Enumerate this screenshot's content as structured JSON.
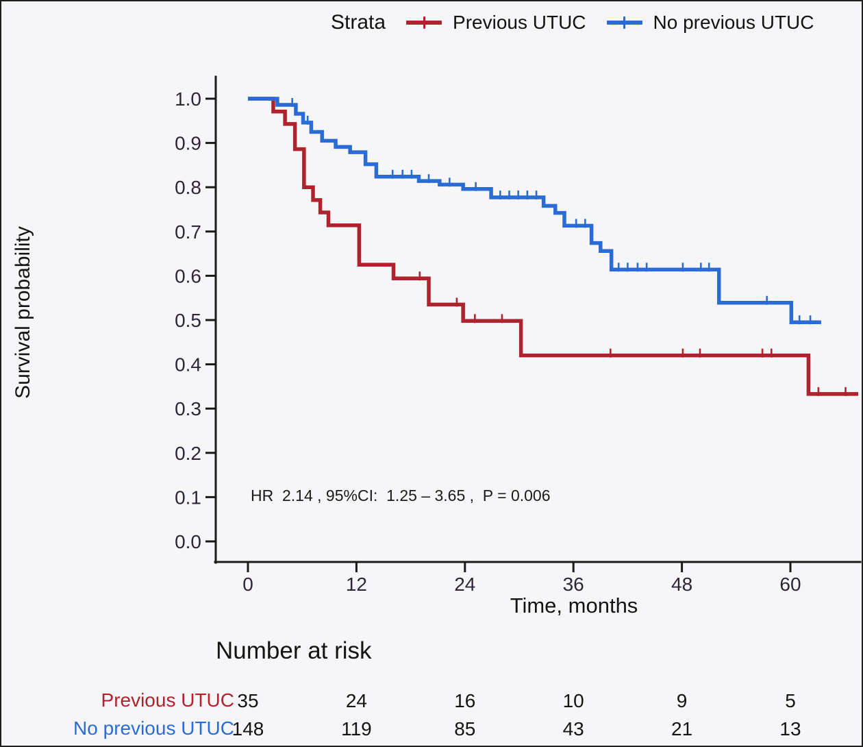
{
  "legend_title": "Strata",
  "chart_data": {
    "type": "line",
    "subtype": "kaplan-meier-step-curves",
    "title": "",
    "xlabel": "Time, months",
    "ylabel": "Survival probability",
    "annotation": "HR  2.14 , 95%CI:  1.25 – 3.65 ,  P = 0.006",
    "xlim": [
      0,
      68
    ],
    "ylim": [
      0.0,
      1.0
    ],
    "grid": false,
    "legend_position": "top",
    "x_tick_values": [
      0,
      12,
      24,
      36,
      48,
      60
    ],
    "x_tick_labels": [
      "0",
      "12",
      "24",
      "36",
      "48",
      "60"
    ],
    "y_tick_values": [
      0.0,
      0.1,
      0.2,
      0.3,
      0.4,
      0.5,
      0.6,
      0.7,
      0.8,
      0.9,
      1.0
    ],
    "y_tick_labels": [
      "0.0",
      "0.1",
      "0.2",
      "0.3",
      "0.4",
      "0.5",
      "0.6",
      "0.7",
      "0.8",
      "0.9",
      "1.0"
    ],
    "series": [
      {
        "name": "Previous UTUC",
        "color": "#AE232E",
        "steps": [
          [
            0,
            1.0
          ],
          [
            2.8,
            0.971
          ],
          [
            4.1,
            0.943
          ],
          [
            5.2,
            0.886
          ],
          [
            6.2,
            0.8
          ],
          [
            7.2,
            0.771
          ],
          [
            8.0,
            0.743
          ],
          [
            8.9,
            0.714
          ],
          [
            12.3,
            0.625
          ],
          [
            16.1,
            0.594
          ],
          [
            20.0,
            0.535
          ],
          [
            23.8,
            0.498
          ],
          [
            30.2,
            0.42
          ],
          [
            62.0,
            0.333
          ]
        ],
        "end_time": 67.5,
        "censors": [
          [
            19.0,
            0.594
          ],
          [
            23.1,
            0.535
          ],
          [
            25.1,
            0.498
          ],
          [
            28.1,
            0.498
          ],
          [
            40.1,
            0.42
          ],
          [
            48.1,
            0.42
          ],
          [
            50.0,
            0.42
          ],
          [
            56.9,
            0.42
          ],
          [
            57.9,
            0.42
          ],
          [
            63.1,
            0.333
          ],
          [
            66.1,
            0.333
          ]
        ]
      },
      {
        "name": "No previous UTUC",
        "color": "#2A6CD4",
        "steps": [
          [
            0,
            1.0
          ],
          [
            3.25,
            0.986
          ],
          [
            5.3,
            0.966
          ],
          [
            6.1,
            0.946
          ],
          [
            7.0,
            0.925
          ],
          [
            8.2,
            0.905
          ],
          [
            9.7,
            0.891
          ],
          [
            11.3,
            0.879
          ],
          [
            13.0,
            0.852
          ],
          [
            14.2,
            0.824
          ],
          [
            18.9,
            0.814
          ],
          [
            21.2,
            0.806
          ],
          [
            23.8,
            0.796
          ],
          [
            26.9,
            0.777
          ],
          [
            32.7,
            0.758
          ],
          [
            34.0,
            0.742
          ],
          [
            35.0,
            0.713
          ],
          [
            38.0,
            0.674
          ],
          [
            39.0,
            0.656
          ],
          [
            40.2,
            0.614
          ],
          [
            52.1,
            0.539
          ],
          [
            60.1,
            0.495
          ]
        ],
        "end_time": 63.4,
        "censors": [
          [
            4.9,
            0.986
          ],
          [
            6.6,
            0.946
          ],
          [
            16.0,
            0.824
          ],
          [
            17.1,
            0.824
          ],
          [
            18.1,
            0.824
          ],
          [
            20.0,
            0.814
          ],
          [
            22.3,
            0.806
          ],
          [
            25.2,
            0.796
          ],
          [
            27.9,
            0.777
          ],
          [
            28.9,
            0.777
          ],
          [
            29.9,
            0.777
          ],
          [
            30.9,
            0.777
          ],
          [
            31.9,
            0.777
          ],
          [
            36.3,
            0.713
          ],
          [
            37.3,
            0.713
          ],
          [
            41.0,
            0.614
          ],
          [
            42.0,
            0.614
          ],
          [
            43.1,
            0.614
          ],
          [
            44.1,
            0.614
          ],
          [
            48.1,
            0.614
          ],
          [
            50.1,
            0.614
          ],
          [
            51.0,
            0.614
          ],
          [
            57.4,
            0.539
          ],
          [
            61.0,
            0.495
          ],
          [
            62.2,
            0.495
          ]
        ]
      }
    ],
    "risk_table": {
      "title": "Number at risk",
      "times": [
        0,
        12,
        24,
        36,
        48,
        60
      ],
      "rows": [
        {
          "label": "Previous UTUC",
          "color": "#AE232E",
          "values": [
            35,
            24,
            16,
            10,
            9,
            5
          ]
        },
        {
          "label": "No previous UTUC",
          "color": "#2A6CD4",
          "values": [
            148,
            119,
            85,
            43,
            21,
            13
          ]
        }
      ]
    }
  }
}
